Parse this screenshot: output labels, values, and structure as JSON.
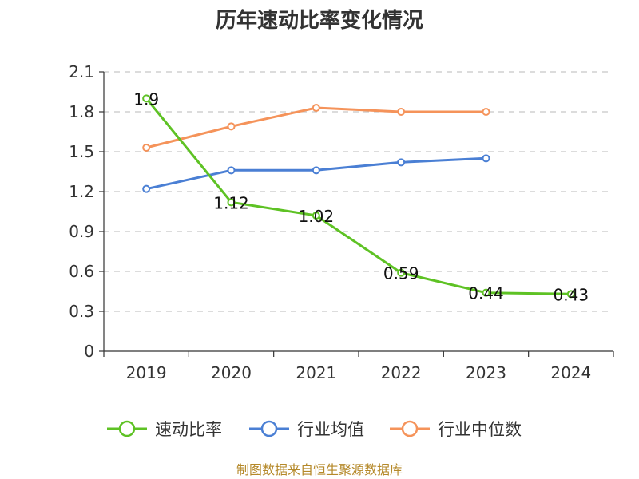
{
  "chart_data": {
    "type": "line",
    "title": "历年速动比率变化情况",
    "categories": [
      "2019",
      "2020",
      "2021",
      "2022",
      "2023",
      "2024"
    ],
    "ylim": [
      0,
      2.1
    ],
    "yticks": [
      "0",
      "0.3",
      "0.6",
      "0.9",
      "1.2",
      "1.5",
      "1.8",
      "2.1"
    ],
    "grid": true,
    "legend_position": "bottom",
    "series": [
      {
        "name": "速动比率",
        "color": "#5ec224",
        "values": [
          1.9,
          1.12,
          1.02,
          0.59,
          0.44,
          0.43
        ],
        "labels": [
          "1.9",
          "1.12",
          "1.02",
          "0.59",
          "0.44",
          "0.43"
        ]
      },
      {
        "name": "行业均值",
        "color": "#4a7fd4",
        "values": [
          1.22,
          1.36,
          1.36,
          1.42,
          1.45,
          null
        ]
      },
      {
        "name": "行业中位数",
        "color": "#f5935a",
        "values": [
          1.53,
          1.69,
          1.83,
          1.8,
          1.8,
          null
        ]
      }
    ]
  },
  "source": "制图数据来自恒生聚源数据库"
}
